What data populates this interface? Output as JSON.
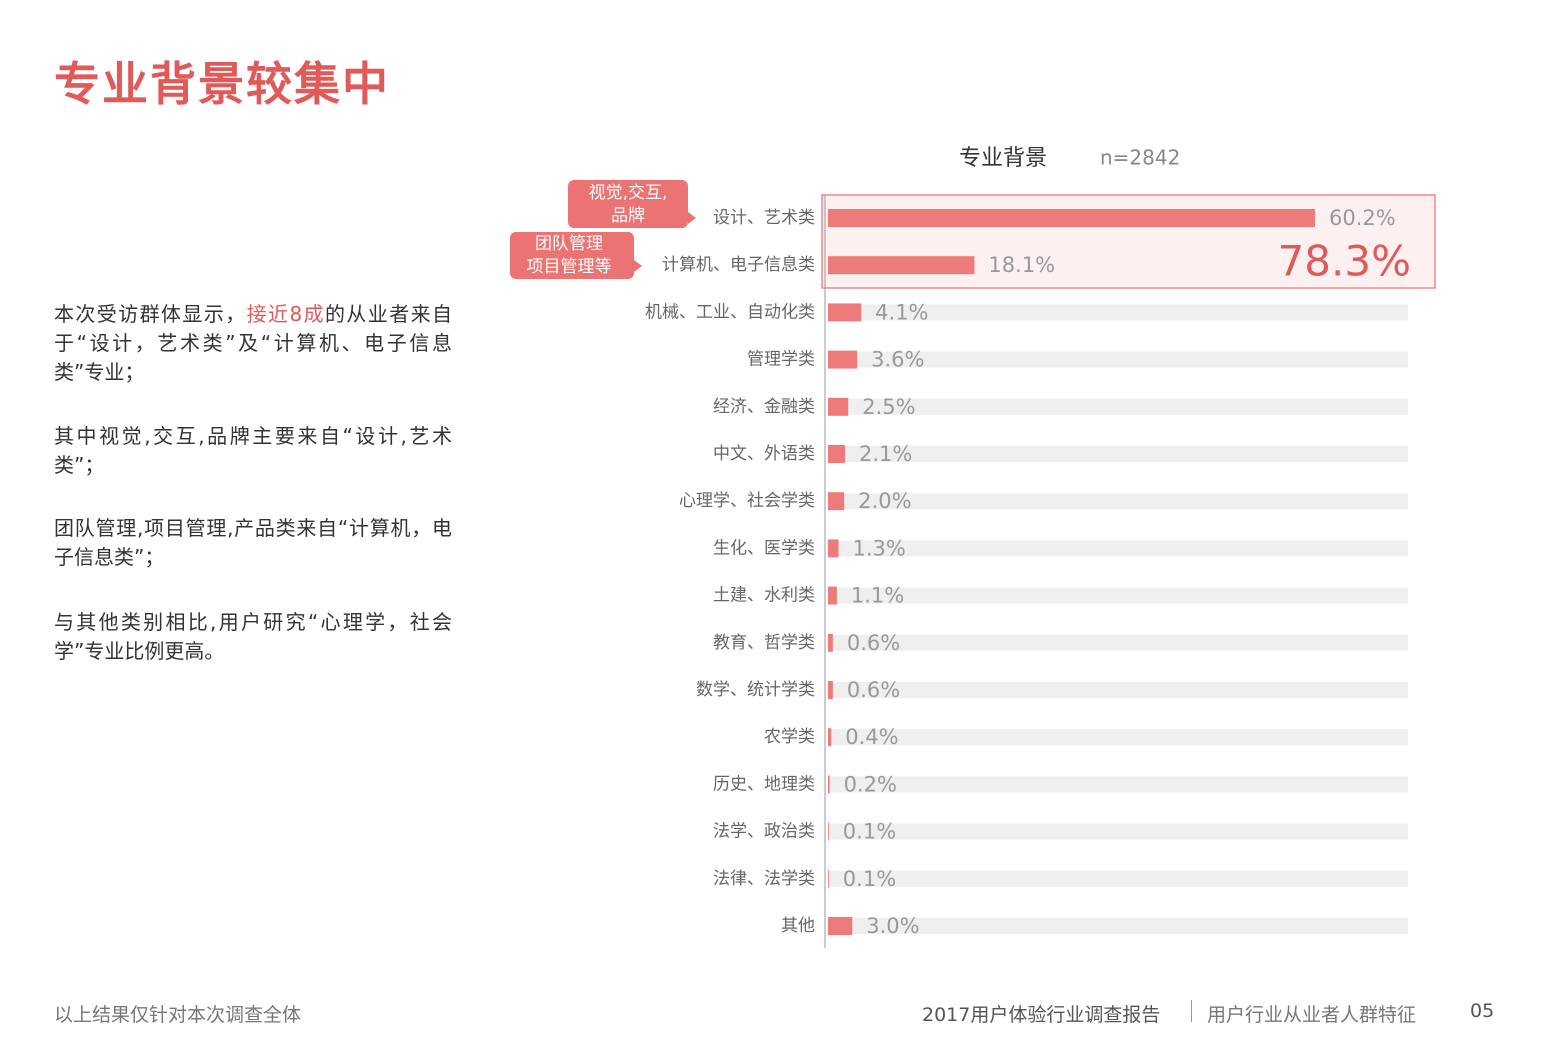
{
  "header": {
    "title": "专业背景较集中"
  },
  "paragraphs": [
    {
      "parts": [
        "本次受访群体显示，",
        "接近8成",
        "的从业者来自于“设计，艺术类”及“计算机、电子信息类”专业；"
      ]
    },
    {
      "parts": [
        "其中视觉,交互,品牌主要来自“设计,艺术类”；"
      ]
    },
    {
      "parts": [
        "团队管理,项目管理,产品类来自“计算机，电子信息类”；"
      ]
    },
    {
      "parts": [
        "与其他类别相比,用户研究“心理学，社会学”专业比例更高。"
      ]
    }
  ],
  "chart_data": {
    "type": "hbar",
    "title": "专业背景",
    "subtitle": "n=2842",
    "color": "#ee7b7b",
    "categories": [
      "设计、艺术类",
      "计算机、电子信息类",
      "机械、工业、自动化类",
      "管理学类",
      "经济、金融类",
      "中文、外语类",
      "心理学、社会学类",
      "生化、医学类",
      "土建、水利类",
      "教育、哲学类",
      "数学、统计学类",
      "农学类",
      "历史、地理类",
      "法学、政治类",
      "法律、法学类",
      "其他"
    ],
    "values": [
      60.2,
      18.1,
      4.1,
      3.6,
      2.5,
      2.1,
      2.0,
      1.3,
      1.1,
      0.6,
      0.6,
      0.4,
      0.2,
      0.1,
      0.1,
      3.0
    ],
    "value_labels": [
      "60.2%",
      "18.1%",
      "4.1%",
      "3.6%",
      "2.5%",
      "2.1%",
      "2.0%",
      "1.3%",
      "1.1%",
      "0.6%",
      "0.6%",
      "0.4%",
      "0.2%",
      "0.1%",
      "0.1%",
      "3.0%"
    ],
    "highlight": "78.3%",
    "callouts": [
      {
        "lines": [
          "视觉,交互,",
          "品牌"
        ]
      },
      {
        "lines": [
          "团队管理",
          "项目管理等"
        ]
      }
    ]
  },
  "footer": {
    "note": "以上结果仅针对本次调查全体",
    "report": "2017用户体验行业调查报告",
    "section": "用户行业从业者人群特征",
    "page": "05"
  }
}
